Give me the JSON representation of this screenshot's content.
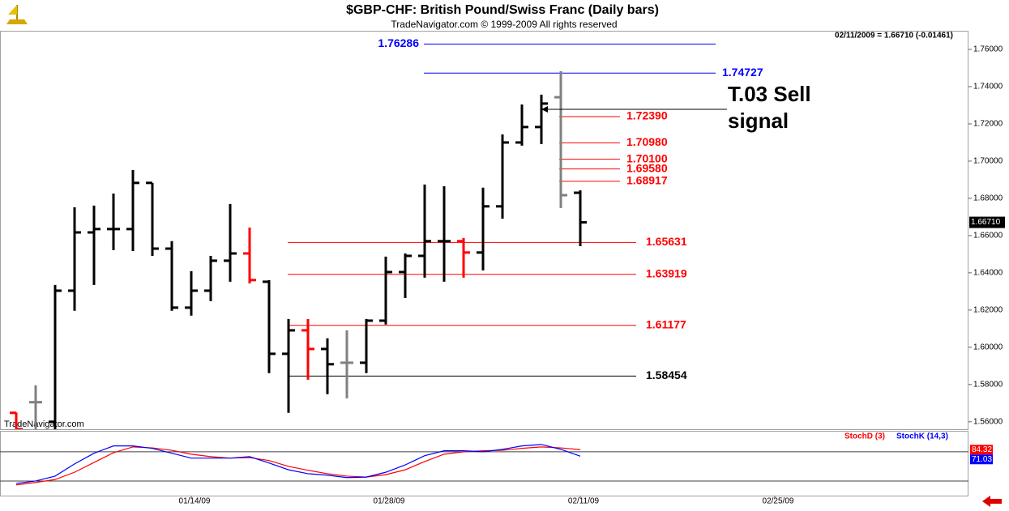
{
  "chart_data": [
    {
      "type": "ohlc",
      "title": "$GBP-CHF:  British Pound/Swiss Franc  (Daily bars)",
      "subtitle": "TradeNavigator.com © 1999-2009 All rights reserved",
      "status": "02/11/2009 = 1.66710 (-0.01461)",
      "watermark": "TradeNavigator.com",
      "annotation": [
        "T.03 Sell",
        "signal"
      ],
      "categories": [
        null,
        null,
        null,
        null,
        null,
        null,
        null,
        null,
        null,
        "01/14/09",
        null,
        null,
        null,
        null,
        null,
        null,
        null,
        null,
        null,
        "01/28/09",
        null,
        null,
        null,
        null,
        null,
        null,
        null,
        null,
        null,
        "02/11/09",
        null,
        null,
        null,
        null,
        null,
        null,
        null,
        null,
        null,
        "02/25/09"
      ],
      "open": [
        1.5648,
        1.5705,
        1.56,
        1.6304,
        1.6617,
        1.6635,
        1.6635,
        1.6883,
        1.653,
        1.6213,
        1.6304,
        1.6465,
        1.6504,
        1.6352,
        1.5965,
        1.6091,
        1.5991,
        1.5917,
        1.5917,
        1.6143,
        1.6404,
        1.6491,
        1.657,
        1.657,
        1.6509,
        1.6757,
        1.71,
        1.7183,
        1.7343,
        1.683,
        null,
        null,
        null,
        null,
        null,
        null,
        null,
        null,
        null,
        null
      ],
      "high": [
        1.565,
        1.5796,
        1.6335,
        1.6752,
        1.6761,
        1.6826,
        1.6952,
        1.6883,
        1.657,
        1.6409,
        1.6491,
        1.677,
        1.6643,
        1.6361,
        1.6152,
        1.6152,
        1.6048,
        1.6091,
        1.6152,
        1.6487,
        1.6504,
        1.6874,
        1.6865,
        1.6587,
        1.6857,
        1.7143,
        1.7304,
        1.7357,
        1.7483,
        1.6843,
        null,
        null,
        null,
        null,
        null,
        null,
        null,
        null,
        null,
        null
      ],
      "low": [
        1.555,
        1.555,
        1.555,
        1.6196,
        1.6335,
        1.6522,
        1.6517,
        1.6491,
        1.6196,
        1.617,
        1.6248,
        1.6352,
        1.6343,
        1.5861,
        1.5648,
        1.5826,
        1.5748,
        1.5726,
        1.5861,
        1.6122,
        1.6265,
        1.6374,
        1.6352,
        1.6374,
        1.6413,
        1.6691,
        1.7083,
        1.7091,
        1.6748,
        1.6543,
        null,
        null,
        null,
        null,
        null,
        null,
        null,
        null,
        null,
        null
      ],
      "close": [
        1.556,
        1.5705,
        1.6304,
        1.6617,
        1.6635,
        1.6635,
        1.6883,
        1.653,
        1.6213,
        1.6304,
        1.6465,
        1.6504,
        1.6361,
        1.5965,
        1.6091,
        1.5991,
        1.5909,
        1.5917,
        1.6143,
        1.6404,
        1.6491,
        1.657,
        1.657,
        1.6509,
        1.6757,
        1.71,
        1.7183,
        1.7309,
        1.6817,
        1.6671,
        null,
        null,
        null,
        null,
        null,
        null,
        null,
        null,
        null,
        null
      ],
      "bar_colors": [
        "#ff0000",
        "#808080",
        "#000000",
        "#000000",
        "#000000",
        "#000000",
        "#000000",
        "#000000",
        "#000000",
        "#000000",
        "#000000",
        "#000000",
        "#ff0000",
        "#000000",
        "#000000",
        "#ff0000",
        "#000000",
        "#808080",
        "#000000",
        "#000000",
        "#000000",
        "#000000",
        "#000000",
        "#ff0000",
        "#000000",
        "#000000",
        "#000000",
        "#000000",
        "#808080",
        "#000000",
        null,
        null,
        null,
        null,
        null,
        null,
        null,
        null,
        null,
        null
      ],
      "ylim": [
        1.556,
        1.77
      ],
      "yticks": [
        {
          "value": 1.56,
          "label": "1.56000"
        },
        {
          "value": 1.58,
          "label": "1.58000"
        },
        {
          "value": 1.6,
          "label": "1.60000"
        },
        {
          "value": 1.62,
          "label": "1.62000"
        },
        {
          "value": 1.64,
          "label": "1.64000"
        },
        {
          "value": 1.66,
          "label": "1.66000"
        },
        {
          "value": 1.68,
          "label": "1.68000"
        },
        {
          "value": 1.7,
          "label": "1.70000"
        },
        {
          "value": 1.72,
          "label": "1.72000"
        },
        {
          "value": 1.74,
          "label": "1.74000"
        },
        {
          "value": 1.76,
          "label": "1.76000"
        }
      ],
      "last_price": {
        "value": 1.6671,
        "label": "1.66710"
      },
      "levels": [
        {
          "value": 1.76286,
          "label": "1.76286",
          "color": "#0000ff"
        },
        {
          "value": 1.74727,
          "label": "1.74727",
          "color": "#0000ff"
        },
        {
          "value": 1.7239,
          "label": "1.72390",
          "color": "#ff0000"
        },
        {
          "value": 1.7098,
          "label": "1.70980",
          "color": "#ff0000"
        },
        {
          "value": 1.701,
          "label": "1.70100",
          "color": "#ff0000"
        },
        {
          "value": 1.6958,
          "label": "1.69580",
          "color": "#ff0000"
        },
        {
          "value": 1.68917,
          "label": "1.68917",
          "color": "#ff0000"
        },
        {
          "value": 1.65631,
          "label": "1.65631",
          "color": "#ff0000"
        },
        {
          "value": 1.63919,
          "label": "1.63919",
          "color": "#ff0000"
        },
        {
          "value": 1.61177,
          "label": "1.61177",
          "color": "#ff0000"
        },
        {
          "value": 1.58454,
          "label": "1.58454",
          "color": "#000000"
        }
      ],
      "signal_level": 1.7278
    },
    {
      "type": "line",
      "series": [
        {
          "name": "StochD (3)",
          "color": "#ff0000",
          "values": [
            12,
            17,
            23,
            38,
            58,
            78,
            90,
            88,
            83,
            75,
            70,
            67,
            68,
            62,
            50,
            42,
            35,
            30,
            28,
            33,
            43,
            60,
            75,
            80,
            82,
            83,
            87,
            90,
            88,
            84.32,
            null,
            null,
            null,
            null,
            null,
            null,
            null,
            null,
            null,
            null
          ]
        },
        {
          "name": "StochK (14,3)",
          "color": "#0000ff",
          "values": [
            15,
            20,
            30,
            55,
            77,
            92,
            92,
            87,
            77,
            67,
            67,
            67,
            70,
            57,
            43,
            35,
            32,
            27,
            28,
            38,
            53,
            72,
            82,
            82,
            80,
            85,
            92,
            95,
            85,
            71.03,
            null,
            null,
            null,
            null,
            null,
            null,
            null,
            null,
            null,
            null
          ]
        }
      ],
      "ylim": [
        -10,
        123
      ],
      "levels": [
        80,
        20
      ]
    }
  ]
}
